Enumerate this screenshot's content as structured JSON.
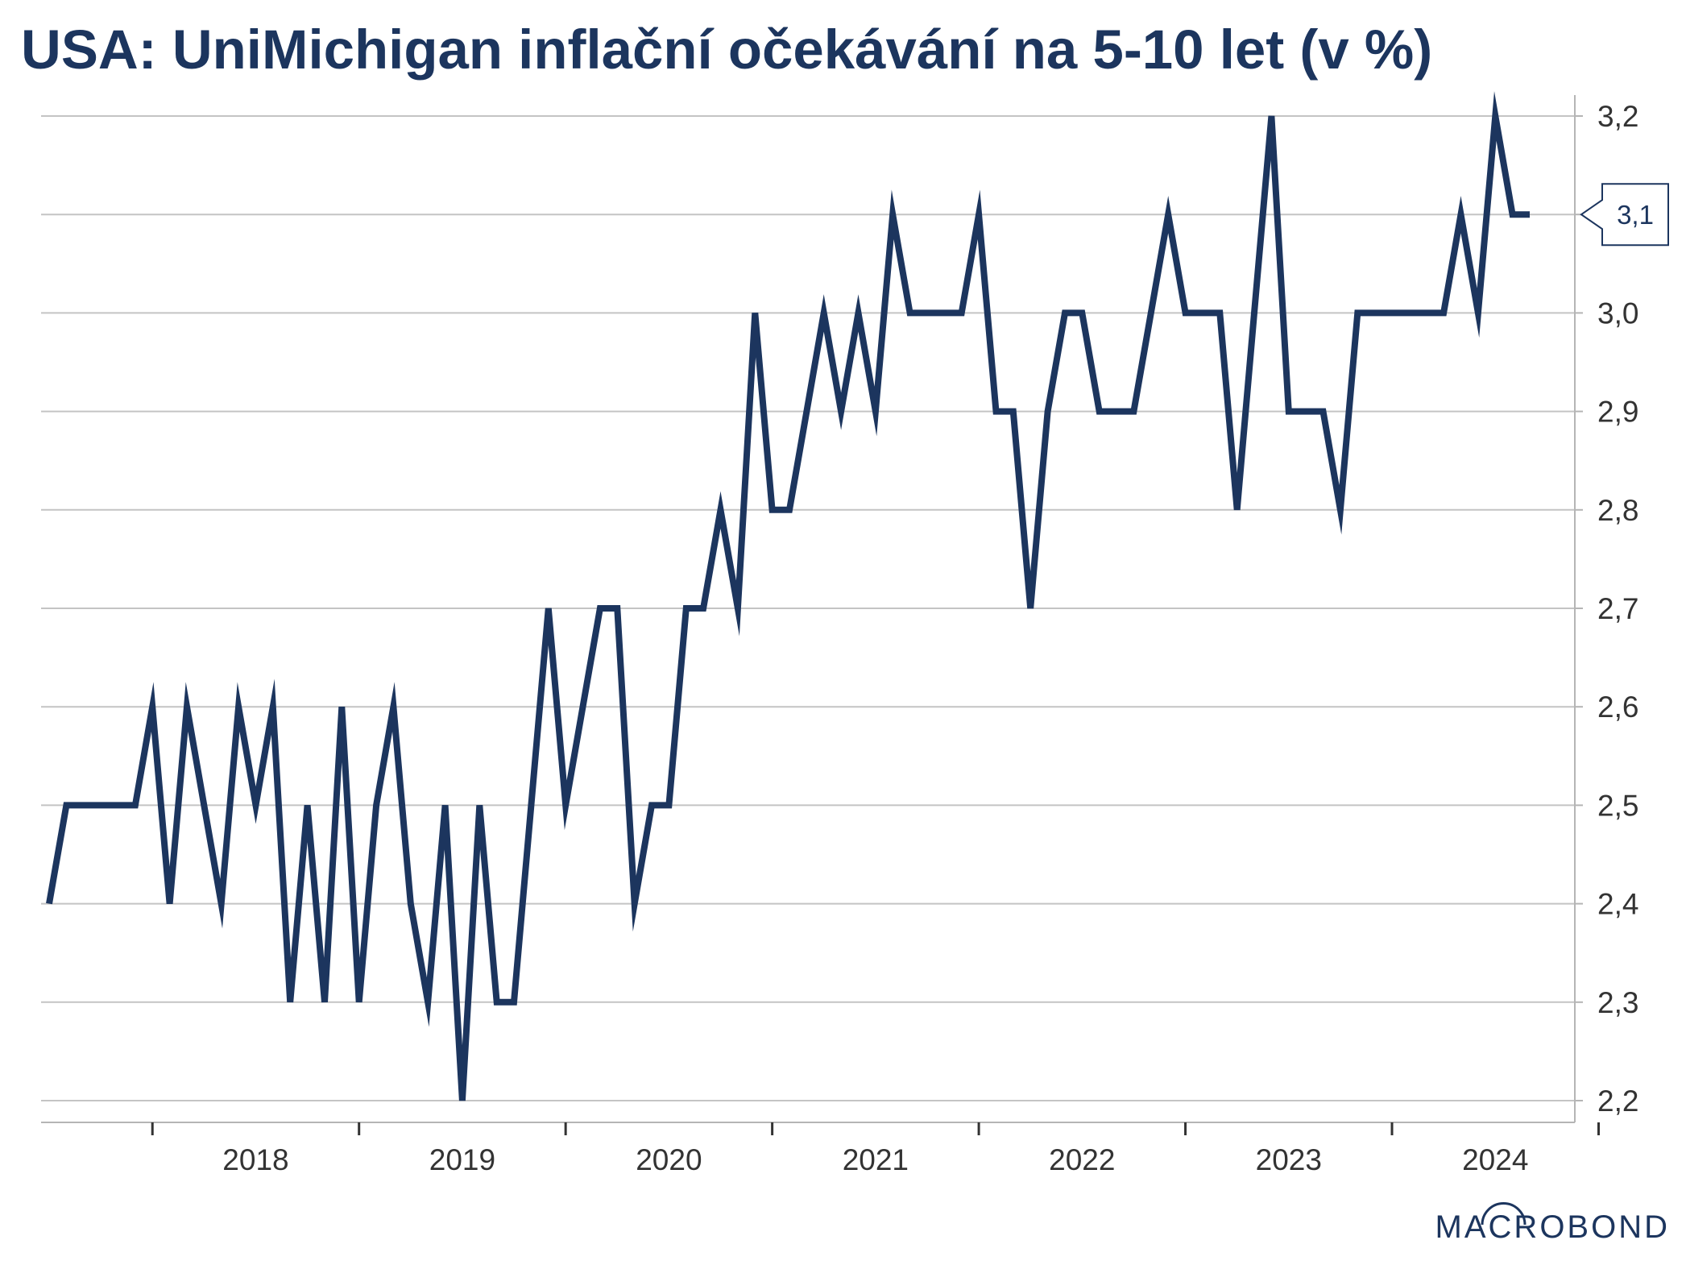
{
  "chart_data": {
    "type": "line",
    "title": "USA: UniMichigan inflační očekávání na 5-10 let (v %)",
    "xlabel": "",
    "ylabel": "",
    "ylim": [
      2.2,
      3.2
    ],
    "yticks": [
      2.2,
      2.3,
      2.4,
      2.5,
      2.6,
      2.7,
      2.8,
      2.9,
      3.0,
      3.1,
      3.2
    ],
    "ytick_labels": [
      "2,2",
      "2,3",
      "2,4",
      "2,5",
      "2,6",
      "2,7",
      "2,8",
      "2,9",
      "3,0",
      "3,1",
      "3,2"
    ],
    "xlim": [
      "2017-07",
      "2024-09"
    ],
    "year_labels": [
      "2018",
      "2019",
      "2020",
      "2021",
      "2022",
      "2023",
      "2024"
    ],
    "grid": true,
    "last_value_label": "3,1",
    "line_color": "#1c355e",
    "series": [
      {
        "name": "",
        "x": [
          "2017-07",
          "2017-08",
          "2017-09",
          "2017-10",
          "2017-11",
          "2017-12",
          "2018-01",
          "2018-02",
          "2018-03",
          "2018-04",
          "2018-05",
          "2018-06",
          "2018-07",
          "2018-08",
          "2018-09",
          "2018-10",
          "2018-11",
          "2018-12",
          "2019-01",
          "2019-02",
          "2019-03",
          "2019-04",
          "2019-05",
          "2019-06",
          "2019-07",
          "2019-08",
          "2019-09",
          "2019-10",
          "2019-11",
          "2019-12",
          "2020-01",
          "2020-02",
          "2020-03",
          "2020-04",
          "2020-05",
          "2020-06",
          "2020-07",
          "2020-08",
          "2020-09",
          "2020-10",
          "2020-11",
          "2020-12",
          "2021-01",
          "2021-02",
          "2021-03",
          "2021-04",
          "2021-05",
          "2021-06",
          "2021-07",
          "2021-08",
          "2021-09",
          "2021-10",
          "2021-11",
          "2021-12",
          "2022-01",
          "2022-02",
          "2022-03",
          "2022-04",
          "2022-05",
          "2022-06",
          "2022-07",
          "2022-08",
          "2022-09",
          "2022-10",
          "2022-11",
          "2022-12",
          "2023-01",
          "2023-02",
          "2023-03",
          "2023-04",
          "2023-05",
          "2023-06",
          "2023-07",
          "2023-08",
          "2023-09",
          "2023-10",
          "2023-11",
          "2023-12",
          "2024-01",
          "2024-02",
          "2024-03",
          "2024-04",
          "2024-05",
          "2024-06",
          "2024-07",
          "2024-08",
          "2024-09"
        ],
        "values": [
          2.4,
          2.5,
          2.5,
          2.5,
          2.5,
          2.5,
          2.6,
          2.4,
          2.6,
          2.5,
          2.4,
          2.6,
          2.5,
          2.6,
          2.3,
          2.5,
          2.3,
          2.6,
          2.3,
          2.5,
          2.6,
          2.4,
          2.3,
          2.5,
          2.2,
          2.5,
          2.3,
          2.3,
          2.5,
          2.7,
          2.5,
          2.6,
          2.7,
          2.7,
          2.4,
          2.5,
          2.5,
          2.7,
          2.7,
          2.8,
          2.7,
          3.0,
          2.8,
          2.8,
          2.9,
          3.0,
          2.9,
          3.0,
          2.9,
          3.1,
          3.0,
          3.0,
          3.0,
          3.0,
          3.1,
          2.9,
          2.9,
          2.7,
          2.9,
          3.0,
          3.0,
          2.9,
          2.9,
          2.9,
          3.0,
          3.1,
          3.0,
          3.0,
          3.0,
          2.8,
          3.0,
          3.2,
          2.9,
          2.9,
          2.9,
          2.8,
          3.0,
          3.0,
          3.0,
          3.0,
          3.0,
          3.0,
          3.1,
          3.0,
          3.2,
          3.1,
          3.1
        ]
      }
    ]
  },
  "brand": {
    "logo_text": "MACROBOND",
    "color": "#1c355e"
  }
}
